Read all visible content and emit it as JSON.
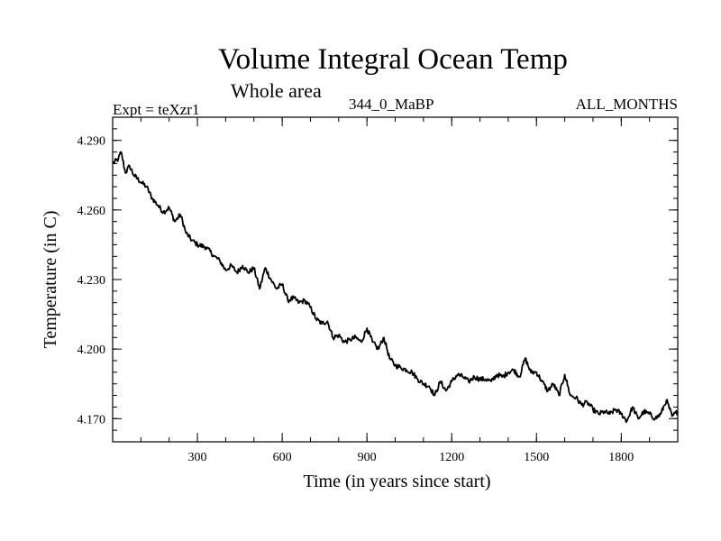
{
  "chart_data": {
    "type": "line",
    "title": "Volume Integral Ocean Temp",
    "subtitle": "Whole area",
    "left_label": "Expt = teXzr1",
    "center_label": "344_0_MaBP",
    "right_label": "ALL_MONTHS",
    "xlabel": "Time (in years since start)",
    "ylabel": "Temperature (in C)",
    "xlim": [
      0,
      2000
    ],
    "ylim": [
      4.16,
      4.3
    ],
    "xticks": [
      300,
      600,
      900,
      1200,
      1500,
      1800
    ],
    "yticks": [
      4.17,
      4.2,
      4.23,
      4.26,
      4.29
    ],
    "ytick_labels": [
      "4.170",
      "4.200",
      "4.230",
      "4.260",
      "4.290"
    ],
    "x_minor_step": 100,
    "y_minor_step": 0.005,
    "series": [
      {
        "name": "Volume Integral Ocean Temp",
        "color": "#000000",
        "x": [
          0,
          20,
          30,
          45,
          60,
          75,
          100,
          120,
          140,
          160,
          180,
          200,
          220,
          240,
          260,
          280,
          300,
          330,
          360,
          380,
          400,
          420,
          440,
          460,
          480,
          500,
          520,
          540,
          560,
          580,
          600,
          620,
          640,
          660,
          680,
          700,
          720,
          740,
          760,
          780,
          800,
          820,
          840,
          860,
          880,
          900,
          920,
          940,
          960,
          980,
          1000,
          1020,
          1040,
          1060,
          1080,
          1100,
          1120,
          1140,
          1160,
          1180,
          1200,
          1220,
          1240,
          1260,
          1280,
          1300,
          1320,
          1340,
          1360,
          1380,
          1400,
          1420,
          1440,
          1460,
          1480,
          1500,
          1520,
          1540,
          1560,
          1580,
          1600,
          1620,
          1640,
          1660,
          1680,
          1700,
          1720,
          1740,
          1760,
          1780,
          1800,
          1820,
          1840,
          1860,
          1880,
          1900,
          1920,
          1940,
          1960,
          1980,
          2000
        ],
        "values": [
          4.28,
          4.282,
          4.285,
          4.276,
          4.279,
          4.275,
          4.272,
          4.27,
          4.265,
          4.262,
          4.259,
          4.261,
          4.255,
          4.258,
          4.25,
          4.247,
          4.245,
          4.244,
          4.24,
          4.238,
          4.234,
          4.236,
          4.233,
          4.236,
          4.233,
          4.235,
          4.226,
          4.235,
          4.23,
          4.226,
          4.228,
          4.221,
          4.222,
          4.22,
          4.221,
          4.218,
          4.213,
          4.211,
          4.212,
          4.205,
          4.206,
          4.203,
          4.204,
          4.205,
          4.203,
          4.209,
          4.203,
          4.2,
          4.205,
          4.196,
          4.193,
          4.192,
          4.191,
          4.19,
          4.187,
          4.185,
          4.184,
          4.18,
          4.186,
          4.182,
          4.186,
          4.189,
          4.188,
          4.186,
          4.188,
          4.187,
          4.187,
          4.186,
          4.189,
          4.188,
          4.19,
          4.191,
          4.188,
          4.196,
          4.19,
          4.19,
          4.186,
          4.182,
          4.185,
          4.18,
          4.189,
          4.18,
          4.179,
          4.176,
          4.177,
          4.174,
          4.172,
          4.173,
          4.172,
          4.174,
          4.172,
          4.169,
          4.175,
          4.17,
          4.173,
          4.172,
          4.17,
          4.172,
          4.178,
          4.171,
          4.173
        ]
      }
    ]
  }
}
